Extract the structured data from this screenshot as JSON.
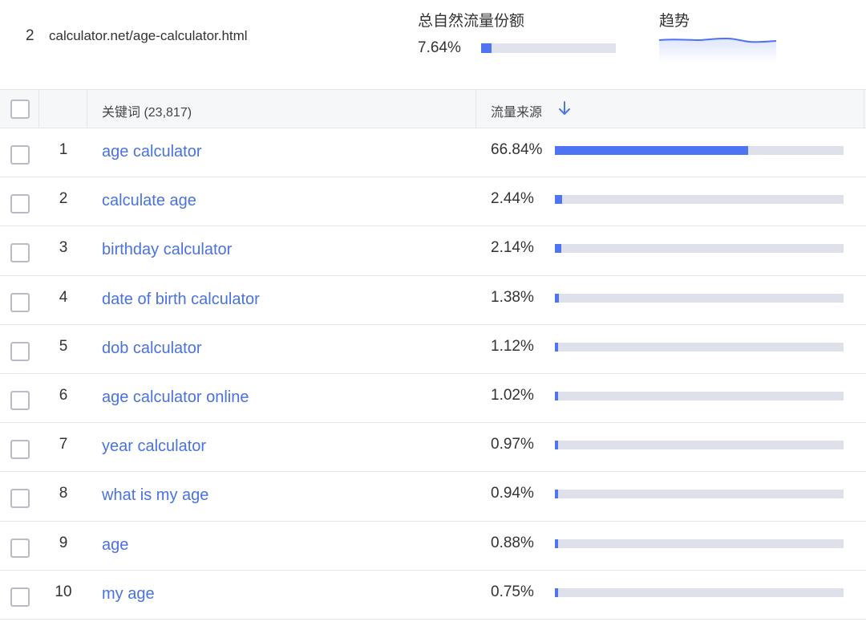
{
  "summary": {
    "rank": "2",
    "url": "calculator.net/age-calculator.html",
    "share_label": "总自然流量份额",
    "share_value": "7.64%",
    "share_fraction": 0.0764,
    "trend_label": "趋势"
  },
  "table": {
    "header": {
      "keyword_label": "关键词 (23,817)",
      "traffic_label": "流量来源",
      "sort_icon": "arrow-down-icon"
    },
    "rows": [
      {
        "rank": "1",
        "keyword": "age calculator",
        "pct": "66.84%",
        "value": 66.84
      },
      {
        "rank": "2",
        "keyword": "calculate age",
        "pct": "2.44%",
        "value": 2.44
      },
      {
        "rank": "3",
        "keyword": "birthday calculator",
        "pct": "2.14%",
        "value": 2.14
      },
      {
        "rank": "4",
        "keyword": "date of birth calculator",
        "pct": "1.38%",
        "value": 1.38
      },
      {
        "rank": "5",
        "keyword": "dob calculator",
        "pct": "1.12%",
        "value": 1.12
      },
      {
        "rank": "6",
        "keyword": "age calculator online",
        "pct": "1.02%",
        "value": 1.02
      },
      {
        "rank": "7",
        "keyword": "year calculator",
        "pct": "0.97%",
        "value": 0.97
      },
      {
        "rank": "8",
        "keyword": "what is my age",
        "pct": "0.94%",
        "value": 0.94
      },
      {
        "rank": "9",
        "keyword": "age",
        "pct": "0.88%",
        "value": 0.88
      },
      {
        "rank": "10",
        "keyword": "my age",
        "pct": "0.75%",
        "value": 0.75
      }
    ]
  },
  "colors": {
    "accent": "#4e73f3",
    "link": "#4a72e0",
    "bar_track": "#dfe1ea"
  }
}
